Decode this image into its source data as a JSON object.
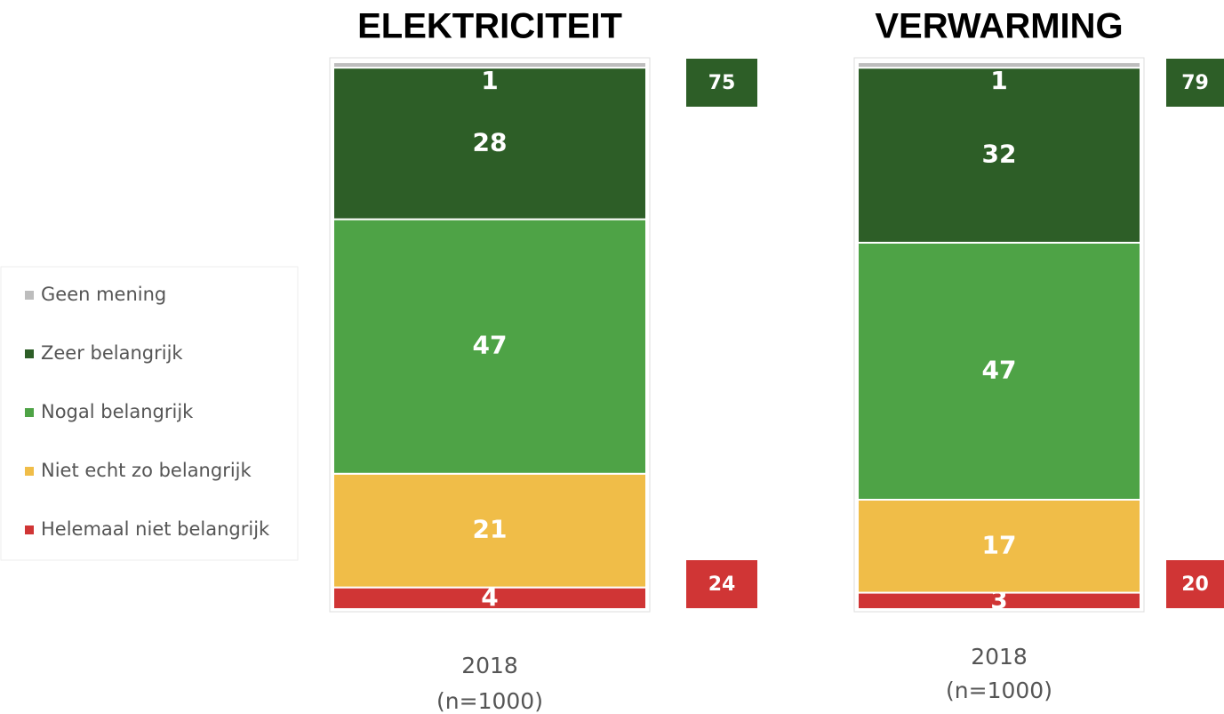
{
  "chart_data": {
    "type": "bar",
    "stacked": true,
    "categories": [
      "ELEKTRICITEIT",
      "VERWARMING"
    ],
    "category_notes": [
      [
        "2018",
        "(n=1000)"
      ],
      [
        "2018",
        "(n=1000)"
      ]
    ],
    "series": [
      {
        "name": "Geen mening",
        "color": "#bdbdbd",
        "values": [
          1,
          1
        ]
      },
      {
        "name": "Zeer belangrijk",
        "color": "#2d5e27",
        "values": [
          28,
          32
        ]
      },
      {
        "name": "Nogal belangrijk",
        "color": "#4ea346",
        "values": [
          47,
          47
        ]
      },
      {
        "name": "Niet echt zo belangrijk",
        "color": "#f0bd48",
        "values": [
          21,
          17
        ]
      },
      {
        "name": "Helemaal niet belangrijk",
        "color": "#d03535",
        "values": [
          4,
          3
        ]
      }
    ],
    "totals_top": [
      75,
      79
    ],
    "totals_top_color": "#2d5e27",
    "totals_bottom": [
      24,
      20
    ],
    "totals_bottom_color": "#d03535"
  }
}
